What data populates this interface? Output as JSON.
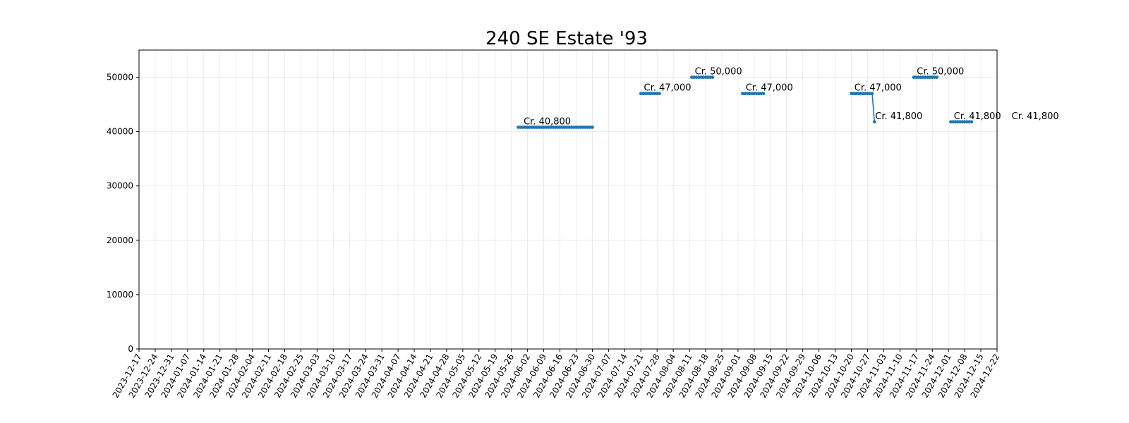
{
  "chart_data": {
    "type": "line",
    "title": "240 SE Estate '93",
    "xlabel": "",
    "ylabel": "",
    "x_ticks": [
      "2023-12-17",
      "2023-12-24",
      "2023-12-31",
      "2024-01-07",
      "2024-01-14",
      "2024-01-21",
      "2024-01-28",
      "2024-02-04",
      "2024-02-11",
      "2024-02-18",
      "2024-02-25",
      "2024-03-03",
      "2024-03-10",
      "2024-03-17",
      "2024-03-24",
      "2024-03-31",
      "2024-04-07",
      "2024-04-14",
      "2024-04-21",
      "2024-04-28",
      "2024-05-05",
      "2024-05-12",
      "2024-05-19",
      "2024-05-26",
      "2024-06-02",
      "2024-06-09",
      "2024-06-16",
      "2024-06-23",
      "2024-06-30",
      "2024-07-07",
      "2024-07-14",
      "2024-07-21",
      "2024-07-28",
      "2024-08-04",
      "2024-08-11",
      "2024-08-18",
      "2024-08-25",
      "2024-09-01",
      "2024-09-08",
      "2024-09-15",
      "2024-09-22",
      "2024-09-29",
      "2024-10-06",
      "2024-10-13",
      "2024-10-20",
      "2024-10-27",
      "2024-11-03",
      "2024-11-10",
      "2024-11-17",
      "2024-11-24",
      "2024-12-01",
      "2024-12-08",
      "2024-12-15",
      "2024-12-22"
    ],
    "xlim": [
      "2023-12-17",
      "2024-12-22"
    ],
    "y_ticks": [
      0,
      10000,
      20000,
      30000,
      40000,
      50000
    ],
    "ylim": [
      0,
      55000
    ],
    "grid": true,
    "color": "#1f77b4",
    "series": [
      {
        "x": [
          "2024-05-29",
          "2024-05-30",
          "2024-05-31",
          "2024-06-01",
          "2024-06-02",
          "2024-06-03",
          "2024-06-04",
          "2024-06-05",
          "2024-06-06",
          "2024-06-07",
          "2024-06-08",
          "2024-06-09",
          "2024-06-10",
          "2024-06-11",
          "2024-06-12",
          "2024-06-13",
          "2024-06-14",
          "2024-06-15",
          "2024-06-16",
          "2024-06-17",
          "2024-06-18",
          "2024-06-19",
          "2024-06-20",
          "2024-06-21",
          "2024-06-22",
          "2024-06-23",
          "2024-06-24",
          "2024-06-25",
          "2024-06-26",
          "2024-06-27",
          "2024-06-28",
          "2024-06-29",
          "2024-06-30",
          "2024-07-21",
          "2024-07-22",
          "2024-07-23",
          "2024-07-24",
          "2024-07-25",
          "2024-07-26",
          "2024-07-27",
          "2024-07-28",
          "2024-07-29",
          "2024-08-12",
          "2024-08-13",
          "2024-08-14",
          "2024-08-15",
          "2024-08-16",
          "2024-08-17",
          "2024-08-18",
          "2024-08-19",
          "2024-08-20",
          "2024-08-21",
          "2024-09-03",
          "2024-09-04",
          "2024-09-05",
          "2024-09-06",
          "2024-09-07",
          "2024-09-08",
          "2024-09-09",
          "2024-09-10",
          "2024-09-11",
          "2024-09-12",
          "2024-10-20",
          "2024-10-21",
          "2024-10-22",
          "2024-10-23",
          "2024-10-24",
          "2024-10-25",
          "2024-10-26",
          "2024-10-27",
          "2024-10-28",
          "2024-10-29",
          "2024-10-30",
          "2024-11-16",
          "2024-11-17",
          "2024-11-18",
          "2024-11-19",
          "2024-11-20",
          "2024-11-21",
          "2024-11-22",
          "2024-11-23",
          "2024-11-24",
          "2024-11-25",
          "2024-11-26",
          "2024-12-02",
          "2024-12-03",
          "2024-12-04",
          "2024-12-05",
          "2024-12-06",
          "2024-12-07",
          "2024-12-08",
          "2024-12-09",
          "2024-12-10",
          "2024-12-11",
          "2024-12-27",
          "2024-12-28",
          "2024-12-29",
          "2024-12-30",
          "2024-12-31",
          "2025-01-01",
          "2025-01-02",
          "2025-01-03",
          "2025-01-04"
        ],
        "y": [
          40800,
          40800,
          40800,
          40800,
          40800,
          40800,
          40800,
          40800,
          40800,
          40800,
          40800,
          40800,
          40800,
          40800,
          40800,
          40800,
          40800,
          40800,
          40800,
          40800,
          40800,
          40800,
          40800,
          40800,
          40800,
          40800,
          40800,
          40800,
          40800,
          40800,
          40800,
          40800,
          40800,
          47000,
          47000,
          47000,
          47000,
          47000,
          47000,
          47000,
          47000,
          47000,
          50000,
          50000,
          50000,
          50000,
          50000,
          50000,
          50000,
          50000,
          50000,
          50000,
          47000,
          47000,
          47000,
          47000,
          47000,
          47000,
          47000,
          47000,
          47000,
          47000,
          47000,
          47000,
          47000,
          47000,
          47000,
          47000,
          47000,
          47000,
          47000,
          47000,
          41800,
          50000,
          50000,
          50000,
          50000,
          50000,
          50000,
          50000,
          50000,
          50000,
          50000,
          50000,
          41800,
          41800,
          41800,
          41800,
          41800,
          41800,
          41800,
          41800,
          41800,
          41800,
          41800,
          41800,
          41800,
          41800,
          41800,
          41800,
          41800,
          41800,
          41800
        ],
        "segments": [
          [
            0,
            32
          ],
          [
            33,
            41
          ],
          [
            42,
            51
          ],
          [
            52,
            61
          ],
          [
            62,
            72
          ],
          [
            73,
            83
          ],
          [
            84,
            93
          ],
          [
            94,
            102
          ]
        ]
      }
    ],
    "annotations": [
      {
        "x": "2024-05-31",
        "y": 40800,
        "text": "Cr. 40,800"
      },
      {
        "x": "2024-07-22",
        "y": 47000,
        "text": "Cr. 47,000"
      },
      {
        "x": "2024-08-13",
        "y": 50000,
        "text": "Cr. 50,000"
      },
      {
        "x": "2024-09-04",
        "y": 47000,
        "text": "Cr. 47,000"
      },
      {
        "x": "2024-10-21",
        "y": 47000,
        "text": "Cr. 47,000"
      },
      {
        "x": "2024-10-30",
        "y": 41800,
        "text": "Cr. 41,800"
      },
      {
        "x": "2024-11-17",
        "y": 50000,
        "text": "Cr. 50,000"
      },
      {
        "x": "2024-12-03",
        "y": 41800,
        "text": "Cr. 41,800"
      },
      {
        "x": "2024-12-28",
        "y": 41800,
        "text": "Cr. 41,800"
      }
    ]
  }
}
